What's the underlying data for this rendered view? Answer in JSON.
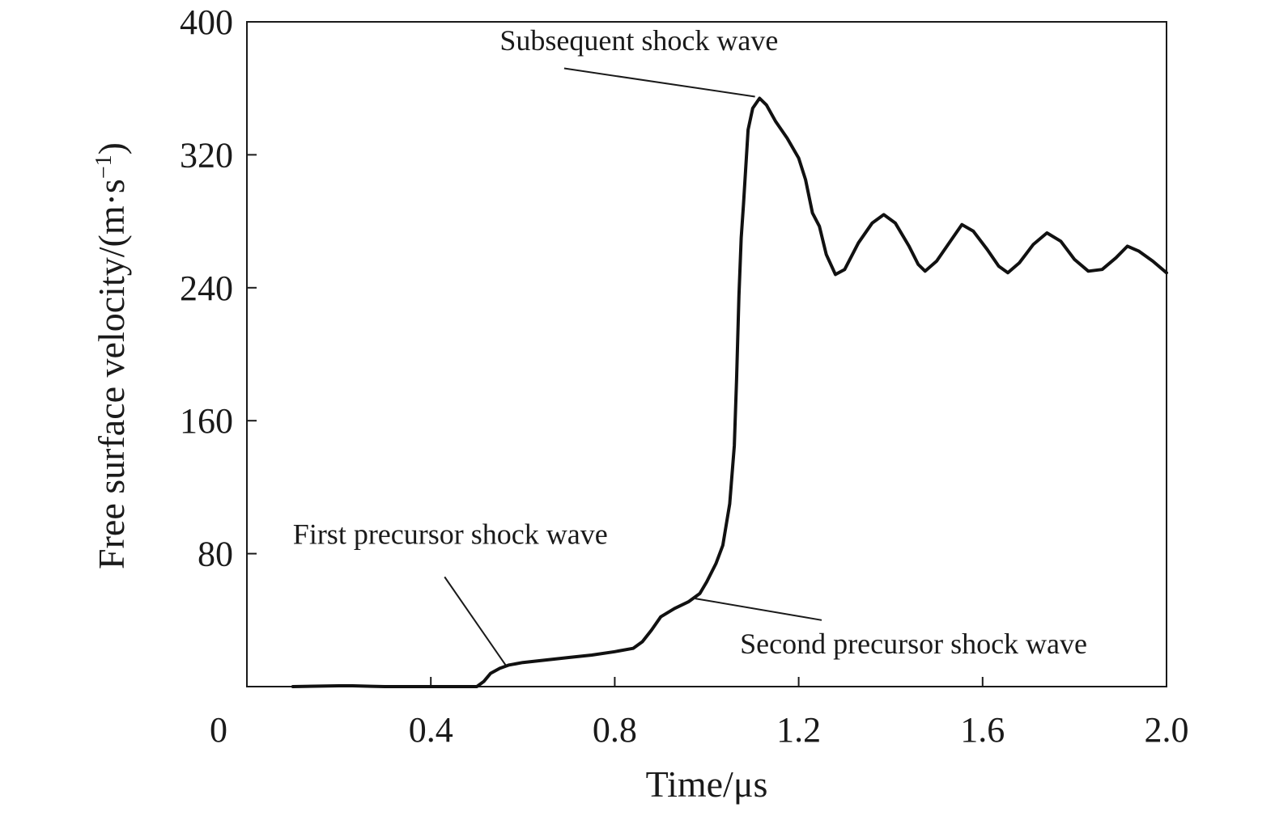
{
  "chart_data": {
    "type": "line",
    "title": "",
    "xlabel": "Time/μs",
    "ylabel": {
      "main": "Free surface velocity/(m·s",
      "sup": "−1",
      "close": ")"
    },
    "xlim": [
      0,
      2.0
    ],
    "ylim": [
      0,
      400
    ],
    "x_ticks": [
      0,
      0.4,
      0.8,
      1.2,
      1.6,
      2.0
    ],
    "x_tick_labels": [
      "0",
      "0.4",
      "0.8",
      "1.2",
      "1.6",
      "2.0"
    ],
    "y_ticks": [
      80,
      160,
      240,
      320,
      400
    ],
    "y_tick_labels": [
      "80",
      "160",
      "240",
      "320",
      "400"
    ],
    "grid": false,
    "legend": "none",
    "line_color": "#111111",
    "series": [
      {
        "points": [
          [
            0.1,
            0.0
          ],
          [
            0.2,
            0.5
          ],
          [
            0.23,
            0.5
          ],
          [
            0.27,
            0.2
          ],
          [
            0.3,
            0.0
          ],
          [
            0.5,
            0.0
          ],
          [
            0.515,
            3
          ],
          [
            0.53,
            8
          ],
          [
            0.55,
            11
          ],
          [
            0.57,
            13
          ],
          [
            0.6,
            14.5
          ],
          [
            0.65,
            16
          ],
          [
            0.7,
            17.5
          ],
          [
            0.75,
            19
          ],
          [
            0.8,
            21
          ],
          [
            0.84,
            23
          ],
          [
            0.86,
            27
          ],
          [
            0.88,
            34
          ],
          [
            0.9,
            42
          ],
          [
            0.93,
            47
          ],
          [
            0.96,
            51
          ],
          [
            0.985,
            56
          ],
          [
            1.0,
            63
          ],
          [
            1.02,
            74
          ],
          [
            1.035,
            85
          ],
          [
            1.05,
            110
          ],
          [
            1.06,
            145
          ],
          [
            1.065,
            185
          ],
          [
            1.07,
            235
          ],
          [
            1.075,
            270
          ],
          [
            1.08,
            290
          ],
          [
            1.09,
            335
          ],
          [
            1.1,
            348
          ],
          [
            1.115,
            354
          ],
          [
            1.13,
            350
          ],
          [
            1.15,
            340
          ],
          [
            1.175,
            330
          ],
          [
            1.2,
            318
          ],
          [
            1.215,
            305
          ],
          [
            1.23,
            285
          ],
          [
            1.245,
            277
          ],
          [
            1.26,
            260
          ],
          [
            1.28,
            248
          ],
          [
            1.3,
            251
          ],
          [
            1.33,
            267
          ],
          [
            1.36,
            279
          ],
          [
            1.385,
            284
          ],
          [
            1.41,
            279
          ],
          [
            1.44,
            265
          ],
          [
            1.46,
            254
          ],
          [
            1.475,
            250
          ],
          [
            1.5,
            256
          ],
          [
            1.53,
            268
          ],
          [
            1.555,
            278
          ],
          [
            1.58,
            274
          ],
          [
            1.61,
            263
          ],
          [
            1.635,
            253
          ],
          [
            1.655,
            249
          ],
          [
            1.68,
            255
          ],
          [
            1.71,
            266
          ],
          [
            1.74,
            273
          ],
          [
            1.77,
            268
          ],
          [
            1.8,
            257
          ],
          [
            1.83,
            250
          ],
          [
            1.86,
            251
          ],
          [
            1.89,
            258
          ],
          [
            1.915,
            265
          ],
          [
            1.94,
            262
          ],
          [
            1.97,
            256
          ],
          [
            2.0,
            249
          ]
        ]
      }
    ],
    "annotations": [
      {
        "text": "Subsequent shock wave",
        "text_at": [
          0.55,
          383
        ],
        "anchor": "start",
        "line": [
          [
            0.69,
            372
          ],
          [
            1.105,
            355
          ]
        ]
      },
      {
        "text": "First precursor shock wave",
        "text_at": [
          0.1,
          86
        ],
        "anchor": "start",
        "line": [
          [
            0.43,
            66
          ],
          [
            0.565,
            12
          ]
        ]
      },
      {
        "text": "Second precursor shock wave",
        "text_at": [
          1.45,
          20
        ],
        "anchor": "middle",
        "line": [
          [
            0.975,
            53
          ],
          [
            1.25,
            40
          ]
        ]
      }
    ]
  }
}
